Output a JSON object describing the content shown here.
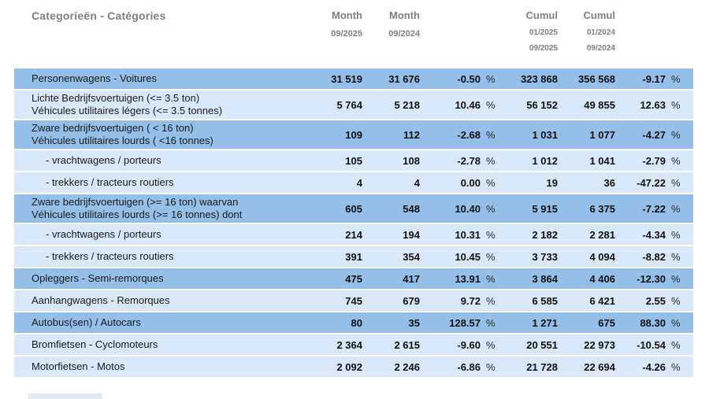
{
  "header": {
    "category_label": "Categorieën - Catégories",
    "month_col_1": {
      "title": "Month",
      "period": "09/2025"
    },
    "month_col_2": {
      "title": "Month",
      "period": "09/2024"
    },
    "cumul_col_1": {
      "title": "Cumul",
      "period_from": "01/2025",
      "period_to": "09/2025"
    },
    "cumul_col_2": {
      "title": "Cumul",
      "period_from": "01/2024",
      "period_to": "09/2024"
    }
  },
  "percent_symbol": "%",
  "colors": {
    "row_dark": "#93bfe8",
    "row_light": "#d9e8f8",
    "header_text": "#7f7f7f",
    "value_text": "#111111"
  },
  "rows": [
    {
      "lines": [
        "Personenwagens - Voitures"
      ],
      "indent": false,
      "shade": "dark",
      "month_2025": "31 519",
      "month_2024": "31 676",
      "month_pct": "-0.50",
      "cumul_2025": "323 868",
      "cumul_2024": "356 568",
      "cumul_pct": "-9.17"
    },
    {
      "lines": [
        "Lichte Bedrijfsvoertuigen (<= 3.5 ton)",
        "Véhicules utilitaires légers (<= 3.5 tonnes)"
      ],
      "indent": false,
      "shade": "light",
      "month_2025": "5 764",
      "month_2024": "5 218",
      "month_pct": "10.46",
      "cumul_2025": "56 152",
      "cumul_2024": "49 855",
      "cumul_pct": "12.63"
    },
    {
      "lines": [
        "Zware bedrijfsvoertuigen ( < 16 ton)",
        "Véhicules utilitaires lourds ( <16 tonnes)"
      ],
      "indent": false,
      "shade": "dark",
      "month_2025": "109",
      "month_2024": "112",
      "month_pct": "-2.68",
      "cumul_2025": "1 031",
      "cumul_2024": "1 077",
      "cumul_pct": "-4.27"
    },
    {
      "lines": [
        "- vrachtwagens / porteurs"
      ],
      "indent": true,
      "shade": "light",
      "month_2025": "105",
      "month_2024": "108",
      "month_pct": "-2.78",
      "cumul_2025": "1 012",
      "cumul_2024": "1 041",
      "cumul_pct": "-2.79"
    },
    {
      "lines": [
        "- trekkers / tracteurs routiers"
      ],
      "indent": true,
      "shade": "light",
      "month_2025": "4",
      "month_2024": "4",
      "month_pct": "0.00",
      "cumul_2025": "19",
      "cumul_2024": "36",
      "cumul_pct": "-47.22"
    },
    {
      "lines": [
        "Zware bedrijfsvoertuigen (>= 16 ton) waarvan",
        "Véhicules utilitaires lourds (>= 16 tonnes) dont"
      ],
      "indent": false,
      "shade": "dark",
      "month_2025": "605",
      "month_2024": "548",
      "month_pct": "10.40",
      "cumul_2025": "5 915",
      "cumul_2024": "6 375",
      "cumul_pct": "-7.22"
    },
    {
      "lines": [
        "- vrachtwagens / porteurs"
      ],
      "indent": true,
      "shade": "light",
      "month_2025": "214",
      "month_2024": "194",
      "month_pct": "10.31",
      "cumul_2025": "2 182",
      "cumul_2024": "2 281",
      "cumul_pct": "-4.34"
    },
    {
      "lines": [
        "- trekkers / tracteurs routiers"
      ],
      "indent": true,
      "shade": "light",
      "month_2025": "391",
      "month_2024": "354",
      "month_pct": "10.45",
      "cumul_2025": "3 733",
      "cumul_2024": "4 094",
      "cumul_pct": "-8.82"
    },
    {
      "lines": [
        "Opleggers - Semi-remorques"
      ],
      "indent": false,
      "shade": "dark",
      "month_2025": "475",
      "month_2024": "417",
      "month_pct": "13.91",
      "cumul_2025": "3 864",
      "cumul_2024": "4 406",
      "cumul_pct": "-12.30"
    },
    {
      "lines": [
        "Aanhangwagens - Remorques"
      ],
      "indent": false,
      "shade": "light",
      "month_2025": "745",
      "month_2024": "679",
      "month_pct": "9.72",
      "cumul_2025": "6 585",
      "cumul_2024": "6 421",
      "cumul_pct": "2.55"
    },
    {
      "lines": [
        "Autobus(sen) / Autocars"
      ],
      "indent": false,
      "shade": "dark",
      "month_2025": "80",
      "month_2024": "35",
      "month_pct": "128.57",
      "cumul_2025": "1 271",
      "cumul_2024": "675",
      "cumul_pct": "88.30"
    },
    {
      "lines": [
        "Bromfietsen - Cyclomoteurs"
      ],
      "indent": false,
      "shade": "light",
      "month_2025": "2 364",
      "month_2024": "2 615",
      "month_pct": "-9.60",
      "cumul_2025": "20 551",
      "cumul_2024": "22 973",
      "cumul_pct": "-10.54"
    },
    {
      "lines": [
        "Motorfietsen - Motos"
      ],
      "indent": false,
      "shade": "light",
      "month_2025": "2 092",
      "month_2024": "2 246",
      "month_pct": "-6.86",
      "cumul_2025": "21 728",
      "cumul_2024": "22 694",
      "cumul_pct": "-4.26"
    }
  ]
}
